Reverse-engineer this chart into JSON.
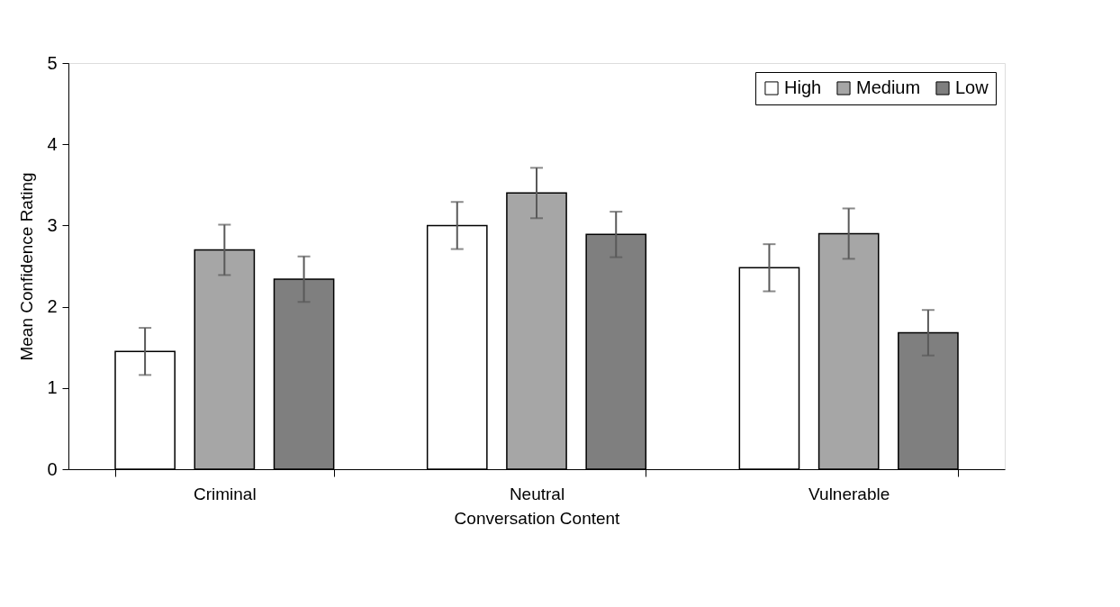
{
  "chart_data": {
    "type": "bar",
    "xlabel": "Conversation Content",
    "ylabel": "Mean Confidence Rating",
    "categories": [
      "Criminal",
      "Neutral",
      "Vulnerable"
    ],
    "series": [
      {
        "name": "High",
        "color": "#ffffff",
        "values": [
          1.45,
          3.0,
          2.48
        ],
        "errors": [
          0.29,
          0.29,
          0.29
        ]
      },
      {
        "name": "Medium",
        "color": "#a6a6a6",
        "values": [
          2.7,
          3.4,
          2.9
        ],
        "errors": [
          0.31,
          0.31,
          0.31
        ]
      },
      {
        "name": "Low",
        "color": "#7f7f7f",
        "values": [
          2.34,
          2.89,
          1.68
        ],
        "errors": [
          0.28,
          0.28,
          0.28
        ]
      }
    ],
    "ylim": [
      0,
      5
    ],
    "yticks": [
      0,
      1,
      2,
      3,
      4,
      5
    ],
    "grid": false,
    "legend": "top right"
  }
}
